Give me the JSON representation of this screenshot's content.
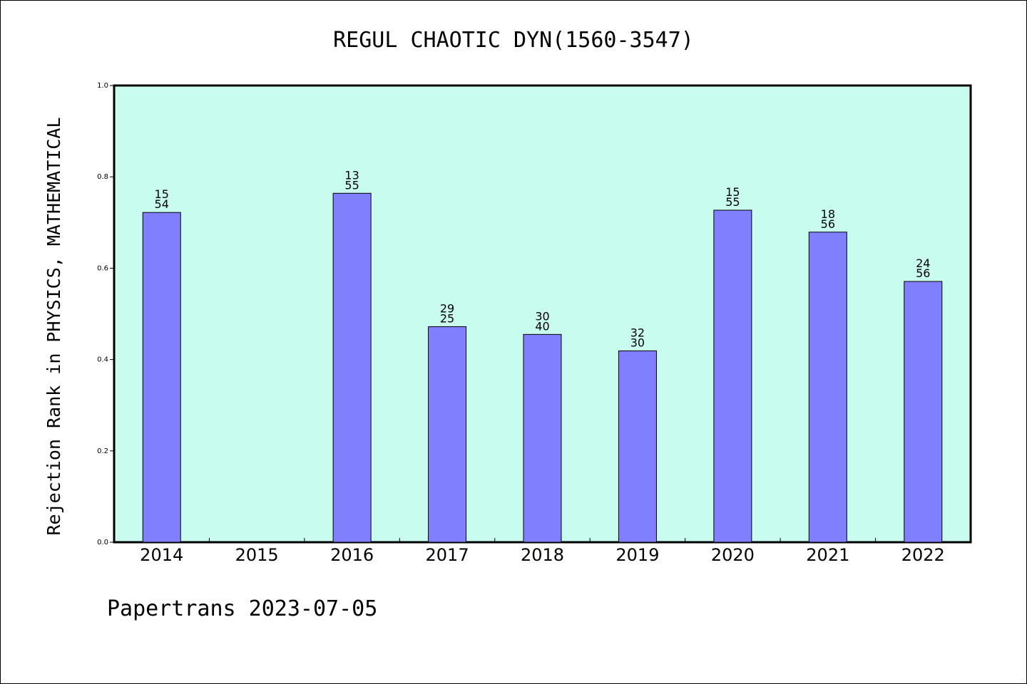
{
  "chart_data": {
    "type": "bar",
    "title": "REGUL CHAOTIC DYN(1560-3547)",
    "ylabel": "Rejection Rank in PHYSICS, MATHEMATICAL",
    "xlabel": "",
    "footer": "Papertrans 2023-07-05",
    "ylim": [
      0,
      1.0
    ],
    "yticks": [
      "0.0",
      "0.2",
      "0.4",
      "0.6",
      "0.8",
      "1.0"
    ],
    "ytick_values": [
      0,
      0.2,
      0.4,
      0.6,
      0.8,
      1.0
    ],
    "categories": [
      "2014",
      "2015",
      "2016",
      "2017",
      "2018",
      "2019",
      "2020",
      "2021",
      "2022"
    ],
    "values": [
      0.722,
      null,
      0.764,
      0.472,
      0.455,
      0.419,
      0.727,
      0.679,
      0.571
    ],
    "label_top": [
      "15",
      "",
      "13",
      "29",
      "30",
      "32",
      "15",
      "18",
      "24"
    ],
    "label_bottom": [
      "54",
      "",
      "55",
      "25",
      "40",
      "30",
      "55",
      "56",
      "56"
    ],
    "plot_background": "#c8fcef",
    "bar_color": "#8080ff",
    "grid": false
  }
}
